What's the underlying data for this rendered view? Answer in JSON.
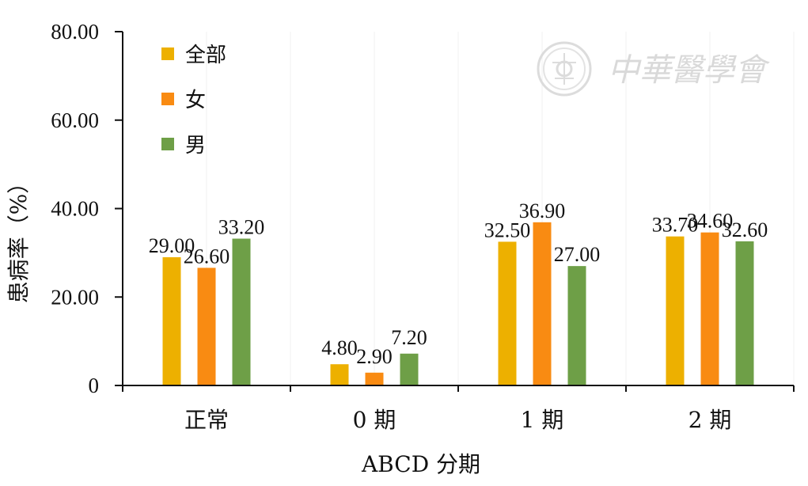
{
  "chart_data": {
    "type": "bar",
    "categories": [
      "正常",
      "0 期",
      "1 期",
      "2 期"
    ],
    "series": [
      {
        "name": "全部",
        "color": "#EDB000",
        "values": [
          29.0,
          4.8,
          32.5,
          33.7
        ],
        "labels": [
          "29.00",
          "4.80",
          "32.50",
          "33.70"
        ]
      },
      {
        "name": "女",
        "color": "#F98B12",
        "values": [
          26.6,
          2.9,
          36.9,
          34.6
        ],
        "labels": [
          "26.60",
          "2.90",
          "36.90",
          "34.60"
        ]
      },
      {
        "name": "男",
        "color": "#6E9F47",
        "values": [
          33.2,
          7.2,
          27.0,
          32.6
        ],
        "labels": [
          "33.20",
          "7.20",
          "27.00",
          "32.60"
        ]
      }
    ],
    "xlabel": "ABCD 分期",
    "ylabel": "患病率（%）",
    "ylim": [
      0,
      80
    ],
    "yticks": [
      0,
      20,
      40,
      60,
      80
    ],
    "ytick_labels": [
      "0",
      "20.00",
      "40.00",
      "60.00",
      "80.00"
    ],
    "legend_position": "top-left",
    "grid": true
  },
  "watermark": {
    "text": "中華醫學會"
  }
}
